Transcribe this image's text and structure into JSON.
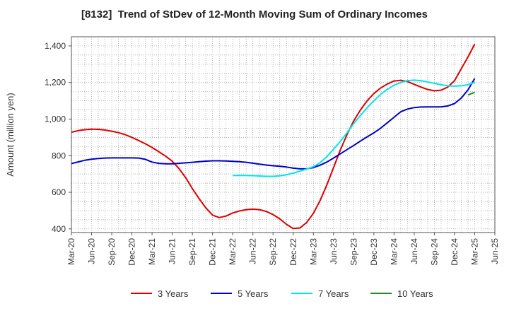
{
  "chart_data": {
    "type": "line",
    "title": "[8132]  Trend of StDev of 12-Month Moving Sum of Ordinary Incomes",
    "ylabel": "Amount (million yen)",
    "xlabel": "",
    "ylim": [
      380,
      1450
    ],
    "yticks": [
      400,
      600,
      800,
      1000,
      1200,
      1400
    ],
    "ytick_labels": [
      "400",
      "600",
      "800",
      "1,000",
      "1,200",
      "1,400"
    ],
    "x_ticks": [
      "Mar-20",
      "Jun-20",
      "Sep-20",
      "Dec-20",
      "Mar-21",
      "Jun-21",
      "Sep-21",
      "Dec-21",
      "Mar-22",
      "Jun-22",
      "Sep-22",
      "Dec-22",
      "Mar-23",
      "Jun-23",
      "Sep-23",
      "Dec-23",
      "Mar-24",
      "Jun-24",
      "Sep-24",
      "Dec-24",
      "Mar-25",
      "Jun-25"
    ],
    "grid": true,
    "legend_position": "bottom",
    "series": [
      {
        "name": "3 Years",
        "color": "#dd0000",
        "points": [
          [
            "Mar-20",
            928
          ],
          [
            "Apr-20",
            937
          ],
          [
            "May-20",
            942
          ],
          [
            "Jun-20",
            945
          ],
          [
            "Jul-20",
            944
          ],
          [
            "Aug-20",
            940
          ],
          [
            "Sep-20",
            934
          ],
          [
            "Oct-20",
            926
          ],
          [
            "Nov-20",
            915
          ],
          [
            "Dec-20",
            900
          ],
          [
            "Jan-21",
            883
          ],
          [
            "Feb-21",
            865
          ],
          [
            "Mar-21",
            845
          ],
          [
            "Apr-21",
            822
          ],
          [
            "May-21",
            798
          ],
          [
            "Jun-21",
            770
          ],
          [
            "Jul-21",
            730
          ],
          [
            "Aug-21",
            680
          ],
          [
            "Sep-21",
            620
          ],
          [
            "Oct-21",
            565
          ],
          [
            "Nov-21",
            515
          ],
          [
            "Dec-21",
            475
          ],
          [
            "Jan-22",
            462
          ],
          [
            "Feb-22",
            470
          ],
          [
            "Mar-22",
            487
          ],
          [
            "Apr-22",
            498
          ],
          [
            "May-22",
            505
          ],
          [
            "Jun-22",
            508
          ],
          [
            "Jul-22",
            505
          ],
          [
            "Aug-22",
            495
          ],
          [
            "Sep-22",
            478
          ],
          [
            "Oct-22",
            455
          ],
          [
            "Nov-22",
            425
          ],
          [
            "Dec-22",
            402
          ],
          [
            "Jan-23",
            405
          ],
          [
            "Feb-23",
            435
          ],
          [
            "Mar-23",
            485
          ],
          [
            "Apr-23",
            555
          ],
          [
            "May-23",
            640
          ],
          [
            "Jun-23",
            735
          ],
          [
            "Jul-23",
            830
          ],
          [
            "Aug-23",
            915
          ],
          [
            "Sep-23",
            990
          ],
          [
            "Oct-23",
            1050
          ],
          [
            "Nov-23",
            1100
          ],
          [
            "Dec-23",
            1140
          ],
          [
            "Jan-24",
            1170
          ],
          [
            "Feb-24",
            1192
          ],
          [
            "Mar-24",
            1208
          ],
          [
            "Apr-24",
            1212
          ],
          [
            "May-24",
            1205
          ],
          [
            "Jun-24",
            1190
          ],
          [
            "Jul-24",
            1175
          ],
          [
            "Aug-24",
            1162
          ],
          [
            "Sep-24",
            1155
          ],
          [
            "Oct-24",
            1158
          ],
          [
            "Nov-24",
            1175
          ],
          [
            "Dec-24",
            1210
          ],
          [
            "Jan-25",
            1275
          ],
          [
            "Feb-25",
            1340
          ],
          [
            "Mar-25",
            1410
          ]
        ]
      },
      {
        "name": "5 Years",
        "color": "#0000cc",
        "points": [
          [
            "Mar-20",
            757
          ],
          [
            "Apr-20",
            766
          ],
          [
            "May-20",
            775
          ],
          [
            "Jun-20",
            781
          ],
          [
            "Jul-20",
            785
          ],
          [
            "Aug-20",
            787
          ],
          [
            "Sep-20",
            788
          ],
          [
            "Oct-20",
            788
          ],
          [
            "Nov-20",
            788
          ],
          [
            "Dec-20",
            788
          ],
          [
            "Jan-21",
            787
          ],
          [
            "Feb-21",
            780
          ],
          [
            "Mar-21",
            765
          ],
          [
            "Apr-21",
            758
          ],
          [
            "May-21",
            756
          ],
          [
            "Jun-21",
            756
          ],
          [
            "Jul-21",
            758
          ],
          [
            "Aug-21",
            761
          ],
          [
            "Sep-21",
            764
          ],
          [
            "Oct-21",
            767
          ],
          [
            "Nov-21",
            770
          ],
          [
            "Dec-21",
            772
          ],
          [
            "Jan-22",
            772
          ],
          [
            "Feb-22",
            771
          ],
          [
            "Mar-22",
            769
          ],
          [
            "Apr-22",
            767
          ],
          [
            "May-22",
            764
          ],
          [
            "Jun-22",
            759
          ],
          [
            "Jul-22",
            754
          ],
          [
            "Aug-22",
            749
          ],
          [
            "Sep-22",
            745
          ],
          [
            "Oct-22",
            742
          ],
          [
            "Nov-22",
            738
          ],
          [
            "Dec-22",
            732
          ],
          [
            "Jan-23",
            728
          ],
          [
            "Feb-23",
            729
          ],
          [
            "Mar-23",
            735
          ],
          [
            "Apr-23",
            748
          ],
          [
            "May-23",
            765
          ],
          [
            "Jun-23",
            787
          ],
          [
            "Jul-23",
            810
          ],
          [
            "Aug-23",
            833
          ],
          [
            "Sep-23",
            856
          ],
          [
            "Oct-23",
            880
          ],
          [
            "Nov-23",
            903
          ],
          [
            "Dec-23",
            925
          ],
          [
            "Jan-24",
            950
          ],
          [
            "Feb-24",
            980
          ],
          [
            "Mar-24",
            1010
          ],
          [
            "Apr-24",
            1040
          ],
          [
            "May-24",
            1055
          ],
          [
            "Jun-24",
            1063
          ],
          [
            "Jul-24",
            1066
          ],
          [
            "Aug-24",
            1067
          ],
          [
            "Sep-24",
            1067
          ],
          [
            "Oct-24",
            1067
          ],
          [
            "Nov-24",
            1072
          ],
          [
            "Dec-24",
            1085
          ],
          [
            "Jan-25",
            1115
          ],
          [
            "Feb-25",
            1160
          ],
          [
            "Mar-25",
            1222
          ]
        ]
      },
      {
        "name": "7 Years",
        "color": "#00e5ee",
        "points": [
          [
            "Mar-22",
            692
          ],
          [
            "Apr-22",
            692
          ],
          [
            "May-22",
            692
          ],
          [
            "Jun-22",
            691
          ],
          [
            "Jul-22",
            689
          ],
          [
            "Aug-22",
            687
          ],
          [
            "Sep-22",
            687
          ],
          [
            "Oct-22",
            690
          ],
          [
            "Nov-22",
            696
          ],
          [
            "Dec-22",
            705
          ],
          [
            "Jan-23",
            716
          ],
          [
            "Feb-23",
            727
          ],
          [
            "Mar-23",
            740
          ],
          [
            "Apr-23",
            762
          ],
          [
            "May-23",
            795
          ],
          [
            "Jun-23",
            835
          ],
          [
            "Jul-23",
            878
          ],
          [
            "Aug-23",
            925
          ],
          [
            "Sep-23",
            975
          ],
          [
            "Oct-23",
            1020
          ],
          [
            "Nov-23",
            1062
          ],
          [
            "Dec-23",
            1100
          ],
          [
            "Jan-24",
            1135
          ],
          [
            "Feb-24",
            1163
          ],
          [
            "Mar-24",
            1185
          ],
          [
            "Apr-24",
            1200
          ],
          [
            "May-24",
            1210
          ],
          [
            "Jun-24",
            1213
          ],
          [
            "Jul-24",
            1210
          ],
          [
            "Aug-24",
            1203
          ],
          [
            "Sep-24",
            1195
          ],
          [
            "Oct-24",
            1188
          ],
          [
            "Nov-24",
            1182
          ],
          [
            "Dec-24",
            1180
          ],
          [
            "Jan-25",
            1182
          ],
          [
            "Feb-25",
            1188
          ],
          [
            "Mar-25",
            1200
          ]
        ]
      },
      {
        "name": "10 Years",
        "color": "#228b22",
        "points": [
          [
            "Feb-25",
            1132
          ],
          [
            "Mar-25",
            1146
          ]
        ]
      }
    ]
  }
}
